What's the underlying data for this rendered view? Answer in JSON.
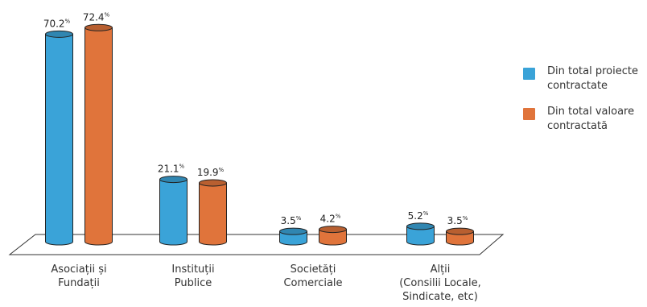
{
  "chart_data": {
    "type": "bar",
    "categories": [
      [
        "Asociații și",
        "Fundații"
      ],
      [
        "Instituții",
        "Publice"
      ],
      [
        "Societăți",
        "Comerciale"
      ],
      [
        "Alții",
        "(Consilii Locale,",
        "Sindicate, etc)"
      ]
    ],
    "series": [
      {
        "name": "Din total proiecte contractate",
        "values": [
          70.2,
          21.1,
          3.5,
          5.2
        ],
        "labels": [
          "70.2",
          "21.1",
          "3.5",
          "5.2"
        ],
        "color": "#3aa3d8"
      },
      {
        "name": "Din total valoare contractată",
        "values": [
          72.4,
          19.9,
          4.2,
          3.5
        ],
        "labels": [
          "72.4",
          "19.9",
          "4.2",
          "3.5"
        ],
        "color": "#e0743b"
      }
    ],
    "value_suffix": "%",
    "ylim": [
      0,
      80
    ],
    "legend_position": "right"
  },
  "legend": {
    "items": [
      {
        "label_lines": [
          "Din total proiecte",
          "contractate"
        ],
        "color": "#3aa3d8"
      },
      {
        "label_lines": [
          "Din total valoare",
          "contractată"
        ],
        "color": "#e0743b"
      }
    ]
  }
}
